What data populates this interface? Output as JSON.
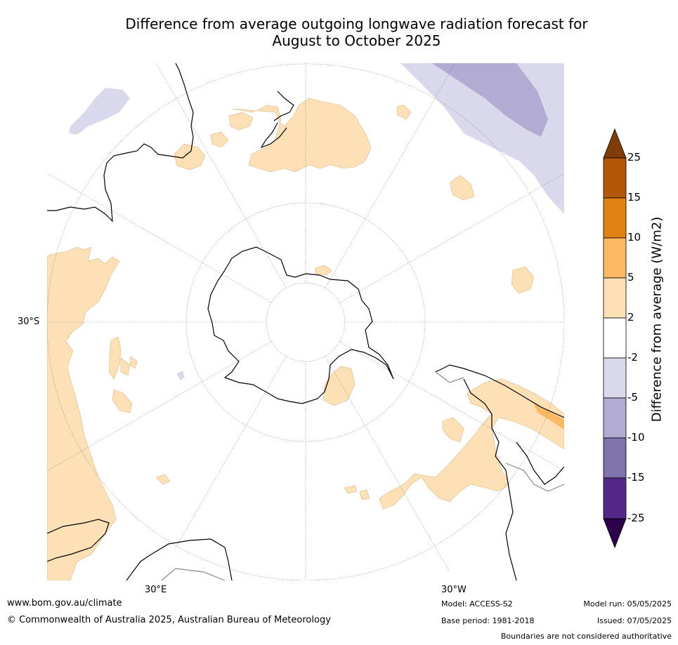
{
  "title_line1": "Difference from average outgoing longwave radiation forecast for",
  "title_line2": "August to October 2025",
  "axis_labels": {
    "lat": "30°S",
    "lon_e": "30°E",
    "lon_w": "30°W"
  },
  "colorbar": {
    "title": "Difference from average (W/m2)",
    "ticks": [
      "25",
      "15",
      "10",
      "5",
      "2",
      "-2",
      "-5",
      "-10",
      "-15",
      "-25"
    ],
    "colors": {
      "above25": "#7f3b08",
      "15_25": "#b35806",
      "10_15": "#e08214",
      "5_10": "#fdb863",
      "2_5": "#fee0b6",
      "neutral": "#ffffff",
      "m2_m5": "#d8daeb",
      "m5_m10": "#b2abd2",
      "m10_m15": "#8073ac",
      "m15_m25": "#542788",
      "below_m25": "#2d004b"
    }
  },
  "footer": {
    "url": "www.bom.gov.au/climate",
    "copyright": "© Commonwealth of Australia 2025, Australian Bureau of Meteorology",
    "model": "Model: ACCESS-S2",
    "base_period": "Base period: 1981-2018",
    "model_run": "Model run: 05/05/2025",
    "issued": "Issued: 07/05/2025",
    "disclaimer": "Boundaries are not considered authoritative"
  }
}
